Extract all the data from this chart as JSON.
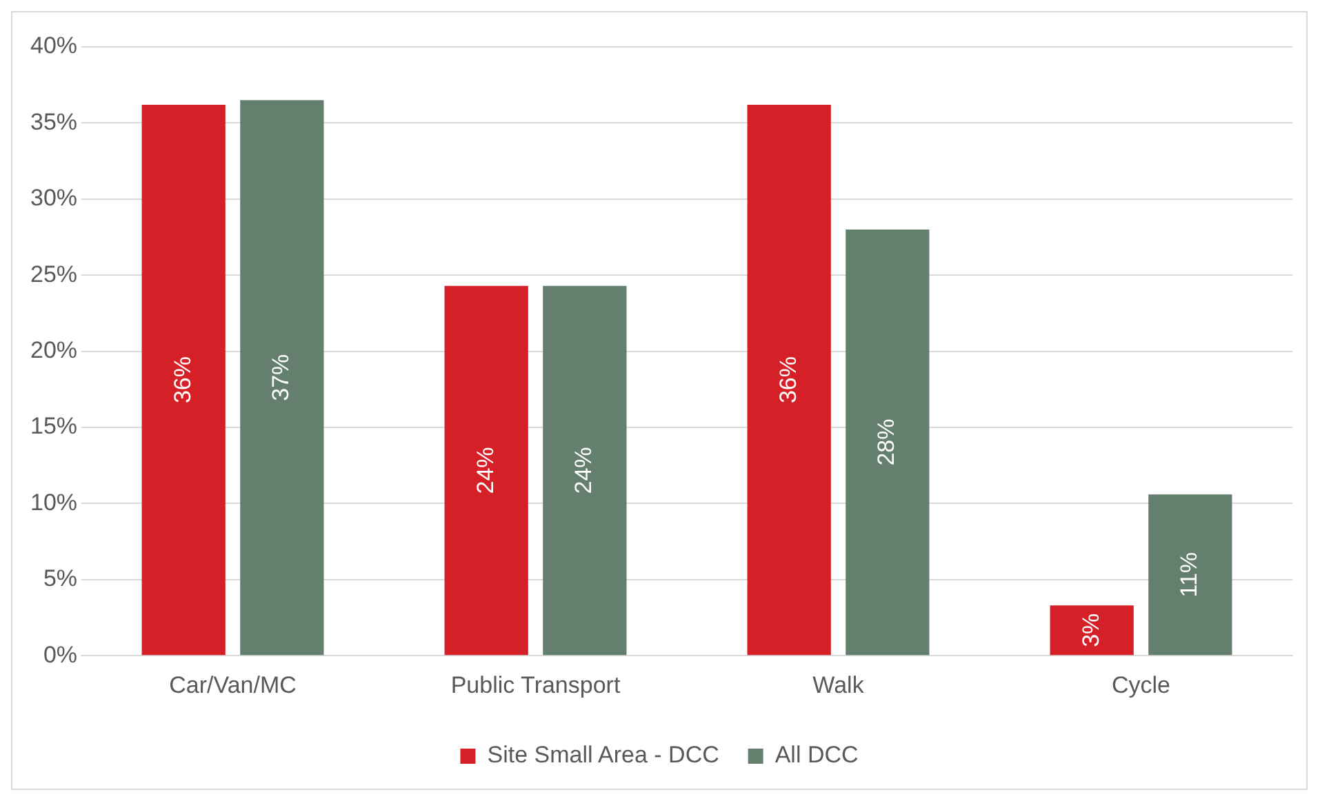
{
  "chart_data": {
    "type": "bar",
    "categories": [
      "Car/Van/MC",
      "Public Transport",
      "Walk",
      "Cycle"
    ],
    "series": [
      {
        "name": "Site Small Area - DCC",
        "color": "#d62027",
        "values": [
          36.2,
          24.3,
          36.2,
          3.3
        ],
        "value_labels": [
          "36%",
          "24%",
          "36%",
          "3%"
        ]
      },
      {
        "name": "All DCC",
        "color": "#647f6e",
        "values": [
          36.5,
          24.3,
          28.0,
          10.6
        ],
        "value_labels": [
          "37%",
          "24%",
          "28%",
          "11%"
        ]
      }
    ],
    "ylim": [
      0,
      40
    ],
    "yticks": [
      {
        "value": 0,
        "label": "0%"
      },
      {
        "value": 5,
        "label": "5%"
      },
      {
        "value": 10,
        "label": "10%"
      },
      {
        "value": 15,
        "label": "15%"
      },
      {
        "value": 20,
        "label": "20%"
      },
      {
        "value": 25,
        "label": "25%"
      },
      {
        "value": 30,
        "label": "30%"
      },
      {
        "value": 35,
        "label": "35%"
      },
      {
        "value": 40,
        "label": "40%"
      }
    ],
    "grid": "y",
    "legend": "bottom"
  }
}
